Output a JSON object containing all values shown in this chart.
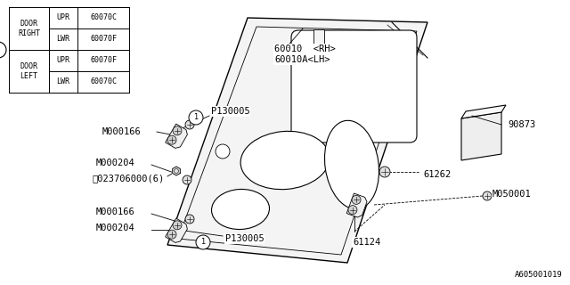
{
  "bg_color": "#ffffff",
  "line_color": "#000000",
  "fig_width": 6.4,
  "fig_height": 3.2,
  "dpi": 100,
  "diagram_ref": "A605001019",
  "table": {
    "col1": [
      "DOOR\nRIGHT",
      "DOOR\nLEFT"
    ],
    "col2": [
      "UPR",
      "LWR",
      "UPR",
      "LWR"
    ],
    "col3": [
      "60070C",
      "60070F",
      "60070F",
      "60070C"
    ]
  }
}
